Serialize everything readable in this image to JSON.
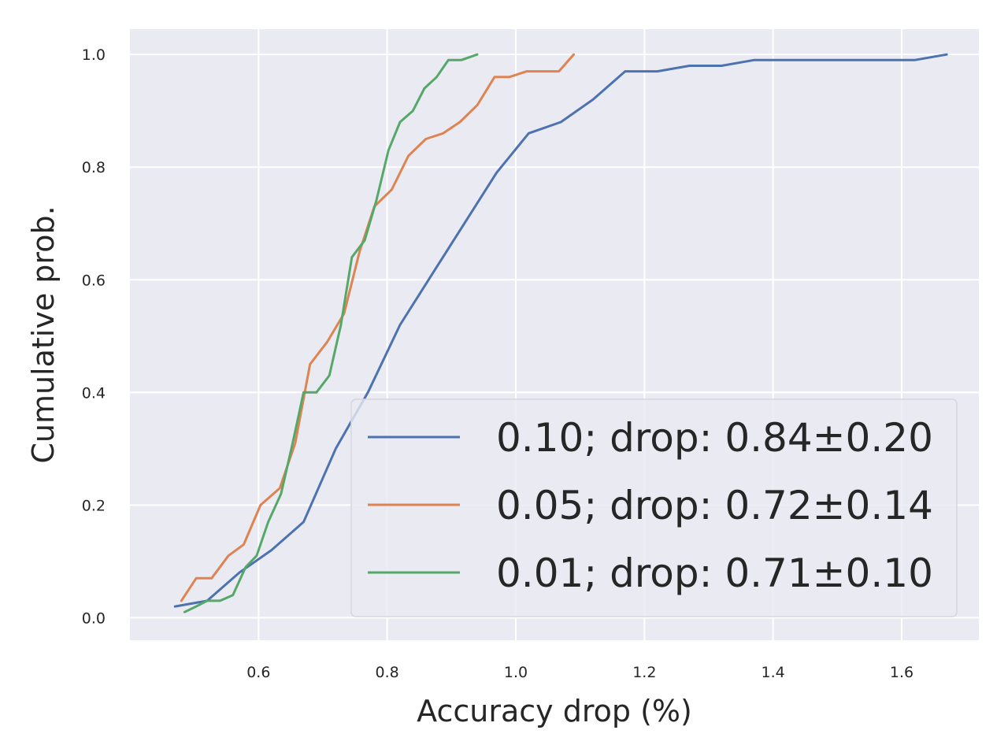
{
  "chart_data": {
    "type": "line",
    "title": "",
    "xlabel": "Accuracy drop (%)",
    "ylabel": "Cumulative prob.",
    "xlim": [
      0.4,
      1.72
    ],
    "ylim": [
      -0.04,
      1.045
    ],
    "xticks": [
      0.6,
      0.8,
      1.0,
      1.2,
      1.4,
      1.6
    ],
    "xtick_labels": [
      "0.6",
      "0.8",
      "1.0",
      "1.2",
      "1.4",
      "1.6"
    ],
    "yticks": [
      0.0,
      0.2,
      0.4,
      0.6,
      0.8,
      1.0
    ],
    "ytick_labels": [
      "0.0",
      "0.2",
      "0.4",
      "0.6",
      "0.8",
      "1.0"
    ],
    "grid": true,
    "legend_position": "lower-right",
    "background_color": "#eaeaf2",
    "series": [
      {
        "name": "0.10; drop: 0.84±0.20",
        "color": "#4c72b0",
        "x": [
          0.47,
          0.52,
          0.57,
          0.62,
          0.67,
          0.72,
          0.77,
          0.82,
          0.87,
          0.92,
          0.97,
          1.02,
          1.07,
          1.12,
          1.17,
          1.22,
          1.27,
          1.32,
          1.37,
          1.42,
          1.47,
          1.52,
          1.57,
          1.62,
          1.67
        ],
        "y": [
          0.02,
          0.03,
          0.08,
          0.12,
          0.17,
          0.3,
          0.4,
          0.52,
          0.61,
          0.7,
          0.79,
          0.86,
          0.88,
          0.92,
          0.97,
          0.97,
          0.98,
          0.98,
          0.99,
          0.99,
          0.99,
          0.99,
          0.99,
          0.99,
          1.0
        ]
      },
      {
        "name": "0.05; drop: 0.72±0.14",
        "color": "#dd8452",
        "x": [
          0.48,
          0.503,
          0.527,
          0.553,
          0.577,
          0.603,
          0.633,
          0.657,
          0.68,
          0.707,
          0.733,
          0.757,
          0.78,
          0.807,
          0.833,
          0.86,
          0.887,
          0.913,
          0.94,
          0.967,
          0.99,
          1.017,
          1.043,
          1.067,
          1.09
        ],
        "y": [
          0.03,
          0.07,
          0.07,
          0.11,
          0.13,
          0.2,
          0.23,
          0.31,
          0.45,
          0.49,
          0.54,
          0.65,
          0.73,
          0.76,
          0.82,
          0.85,
          0.86,
          0.88,
          0.91,
          0.96,
          0.96,
          0.97,
          0.97,
          0.97,
          1.0
        ]
      },
      {
        "name": "0.01; drop: 0.71±0.10",
        "color": "#55a868",
        "x": [
          0.485,
          0.503,
          0.52,
          0.54,
          0.56,
          0.58,
          0.597,
          0.615,
          0.635,
          0.653,
          0.67,
          0.69,
          0.71,
          0.728,
          0.745,
          0.765,
          0.783,
          0.802,
          0.82,
          0.84,
          0.858,
          0.877,
          0.895,
          0.915,
          0.94
        ],
        "y": [
          0.01,
          0.02,
          0.03,
          0.03,
          0.04,
          0.09,
          0.11,
          0.17,
          0.22,
          0.31,
          0.4,
          0.4,
          0.43,
          0.52,
          0.64,
          0.67,
          0.74,
          0.83,
          0.88,
          0.9,
          0.94,
          0.96,
          0.99,
          0.99,
          1.0
        ]
      }
    ]
  }
}
